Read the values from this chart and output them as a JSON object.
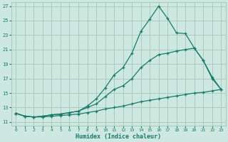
{
  "xlabel": "Humidex (Indice chaleur)",
  "background_color": "#cce8e0",
  "grid_color": "#aaccbb",
  "line_color": "#1a7a6a",
  "xlim": [
    -0.5,
    23.5
  ],
  "ylim": [
    10.5,
    27.5
  ],
  "xticks": [
    0,
    1,
    2,
    3,
    4,
    5,
    6,
    7,
    8,
    9,
    10,
    11,
    12,
    13,
    14,
    15,
    16,
    17,
    18,
    19,
    20,
    21,
    22,
    23
  ],
  "yticks": [
    11,
    13,
    15,
    17,
    19,
    21,
    23,
    25,
    27
  ],
  "line_bottom_x": [
    0,
    1,
    2,
    3,
    4,
    5,
    6,
    7,
    8,
    9,
    10,
    11,
    12,
    13,
    14,
    15,
    16,
    17,
    18,
    19,
    20,
    21,
    22,
    23
  ],
  "line_bottom_y": [
    12.2,
    11.8,
    11.7,
    11.7,
    11.8,
    11.9,
    12.0,
    12.1,
    12.3,
    12.5,
    12.8,
    13.0,
    13.2,
    13.5,
    13.8,
    14.0,
    14.2,
    14.4,
    14.6,
    14.8,
    15.0,
    15.1,
    15.3,
    15.5
  ],
  "line_mid_x": [
    0,
    1,
    2,
    3,
    4,
    5,
    6,
    7,
    8,
    9,
    10,
    11,
    12,
    13,
    14,
    15,
    16,
    17,
    18,
    19,
    20,
    21,
    22,
    23
  ],
  "line_mid_y": [
    12.2,
    11.8,
    11.7,
    11.8,
    12.0,
    12.1,
    12.3,
    12.5,
    13.0,
    13.5,
    14.5,
    15.5,
    16.0,
    17.0,
    18.5,
    19.5,
    20.3,
    20.5,
    20.8,
    21.0,
    21.2,
    19.5,
    17.0,
    15.5
  ],
  "line_top_x": [
    0,
    1,
    2,
    3,
    4,
    5,
    6,
    7,
    8,
    9,
    10,
    11,
    12,
    13,
    14,
    15,
    16,
    17,
    18,
    19,
    20,
    21,
    22,
    23
  ],
  "line_top_y": [
    12.2,
    11.8,
    11.7,
    11.8,
    12.0,
    12.1,
    12.3,
    12.5,
    13.2,
    14.2,
    15.7,
    17.5,
    18.5,
    20.5,
    23.5,
    25.2,
    27.0,
    25.3,
    23.3,
    23.2,
    21.2,
    19.5,
    17.2,
    15.5
  ]
}
